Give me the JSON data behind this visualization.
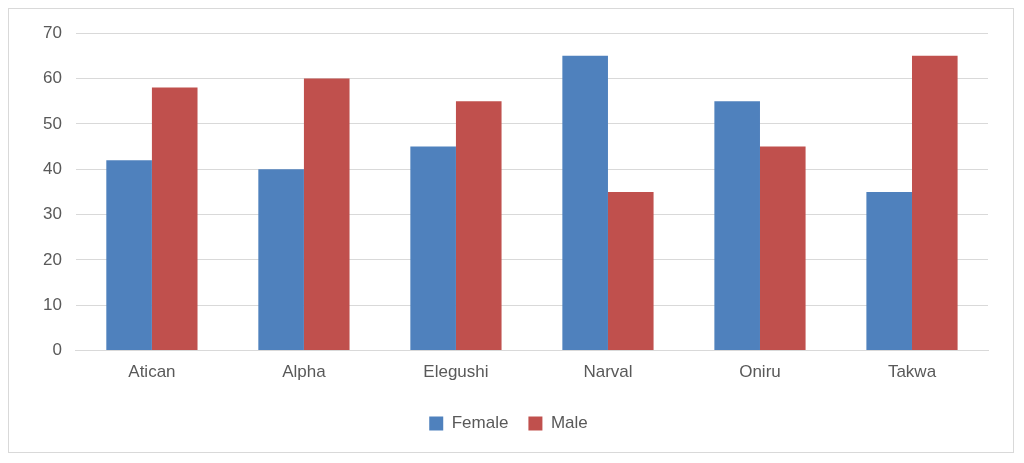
{
  "chart_data": {
    "type": "bar",
    "categories": [
      "Atican",
      "Alpha",
      "Elegushi",
      "Narval",
      "Oniru",
      "Takwa"
    ],
    "series": [
      {
        "name": "Female",
        "color": "#4f81bd",
        "values": [
          42,
          40,
          45,
          65,
          55,
          35
        ]
      },
      {
        "name": "Male",
        "color": "#c0504d",
        "values": [
          58,
          60,
          55,
          35,
          45,
          65
        ]
      }
    ],
    "ylim": [
      0,
      70
    ],
    "yticks": [
      0,
      10,
      20,
      30,
      40,
      50,
      60,
      70
    ],
    "grid": "y",
    "legend": "bottom"
  }
}
